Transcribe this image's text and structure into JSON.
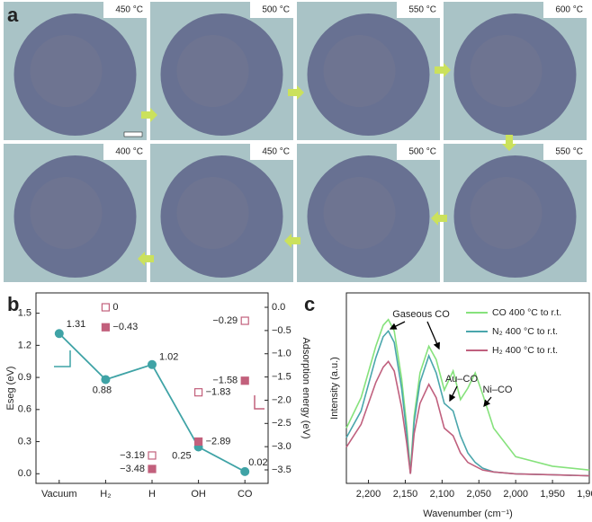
{
  "panel_a": {
    "label": "a",
    "images": [
      {
        "temperature": "450 °C"
      },
      {
        "temperature": "500 °C"
      },
      {
        "temperature": "550 °C"
      },
      {
        "temperature": "600 °C"
      },
      {
        "temperature": "400 °C"
      },
      {
        "temperature": "450 °C"
      },
      {
        "temperature": "500 °C"
      },
      {
        "temperature": "550 °C"
      }
    ]
  },
  "chart_data": [
    {
      "type": "line",
      "panel_label": "b",
      "categories": [
        "Vacuum",
        "H₂",
        "H",
        "OH",
        "CO"
      ],
      "y_label": "Eseg (eV)",
      "y2_label": "Adsorption energy (eV)",
      "ylim": [
        -0.09,
        1.69
      ],
      "yticks": [
        {
          "value": 0,
          "label": "0.0"
        },
        0.3,
        0.6,
        0.9,
        1.2,
        1.5
      ],
      "y2lim": [
        -3.79,
        0.31
      ],
      "y2ticks": [
        {
          "value": 0,
          "label": "0.0"
        },
        {
          "value": -0.5,
          "label": "−0.5"
        },
        {
          "value": -1,
          "label": "−1.0"
        },
        {
          "value": -1.5,
          "label": "−1.5"
        },
        {
          "value": -2,
          "label": "−2.0"
        },
        {
          "value": -2.5,
          "label": "−2.5"
        },
        {
          "value": -3,
          "label": "−3.0"
        },
        {
          "value": -3.5,
          "label": "−3.5"
        }
      ],
      "series": [
        {
          "color": "#3fa3a6",
          "marker": "circle",
          "line": true,
          "values": [
            1.31,
            0.88,
            1.02,
            0.25,
            0.02
          ]
        },
        {
          "color": "#c2607c",
          "marker": "square-open",
          "axis": "y2",
          "values": [
            null,
            0,
            -3.19,
            -1.83,
            -0.29
          ],
          "value_labels": [
            null,
            "0",
            "−3.19",
            "−1.83",
            "−0.29"
          ]
        },
        {
          "color": "#c2607c",
          "marker": "square",
          "axis": "y2",
          "values": [
            null,
            -0.43,
            -3.48,
            -2.89,
            -1.58
          ],
          "value_labels": [
            null,
            "−0.43",
            "−3.48",
            "−2.89",
            "−1.58"
          ]
        }
      ]
    },
    {
      "type": "line",
      "panel_label": "c",
      "x_label": "Wavenumber (cm⁻¹)",
      "y_label": "Intensity (a.u.)",
      "xlim": [
        2230,
        1900
      ],
      "xticks": [
        {
          "value": 2200,
          "label": "2,200"
        },
        {
          "value": 2150,
          "label": "2,150"
        },
        {
          "value": 2100,
          "label": "2,100"
        },
        {
          "value": 2050,
          "label": "2,050"
        },
        {
          "value": 2000,
          "label": "2,000"
        },
        {
          "value": 1950,
          "label": "1,950"
        },
        {
          "value": 1900,
          "label": "1,900"
        }
      ],
      "ylim": [
        0,
        1
      ],
      "x": [
        2230,
        2210,
        2190,
        2180,
        2173,
        2165,
        2155,
        2148,
        2143,
        2138,
        2130,
        2118,
        2108,
        2097,
        2085,
        2075,
        2065,
        2055,
        2045,
        2030,
        2000,
        1950,
        1900
      ],
      "series": [
        {
          "name": "CO 400 °C to r.t.",
          "color": "#86e27c",
          "values": [
            0.29,
            0.45,
            0.72,
            0.83,
            0.86,
            0.8,
            0.55,
            0.3,
            0.06,
            0.35,
            0.58,
            0.72,
            0.65,
            0.49,
            0.59,
            0.44,
            0.5,
            0.58,
            0.47,
            0.29,
            0.14,
            0.09,
            0.07
          ]
        },
        {
          "name": "N₂ 400 °C to r.t.",
          "color": "#4aa6ac",
          "values": [
            0.24,
            0.38,
            0.66,
            0.77,
            0.8,
            0.74,
            0.5,
            0.26,
            0.05,
            0.32,
            0.53,
            0.67,
            0.58,
            0.42,
            0.38,
            0.25,
            0.16,
            0.11,
            0.08,
            0.06,
            0.05,
            0.045,
            0.04
          ]
        },
        {
          "name": "H₂ 400 °C to r.t.",
          "color": "#c0607e",
          "values": [
            0.19,
            0.31,
            0.53,
            0.61,
            0.64,
            0.59,
            0.4,
            0.21,
            0.05,
            0.26,
            0.42,
            0.52,
            0.45,
            0.29,
            0.25,
            0.16,
            0.11,
            0.09,
            0.07,
            0.06,
            0.05,
            0.045,
            0.04
          ]
        }
      ],
      "annotations": [
        "Gaseous CO",
        "Au–CO",
        "Ni–CO"
      ]
    }
  ]
}
